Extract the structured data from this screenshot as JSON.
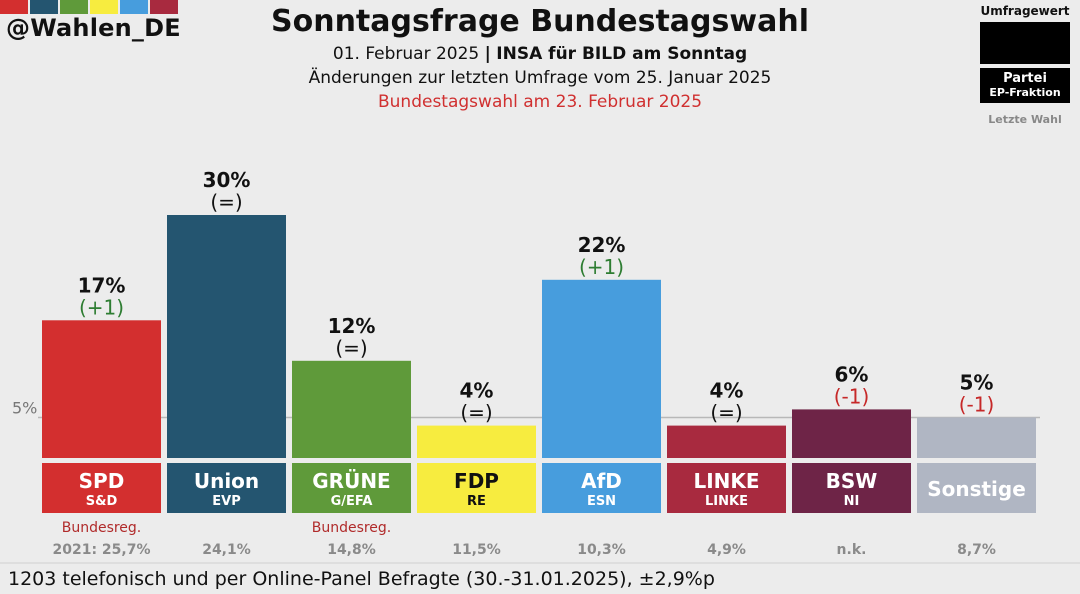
{
  "handle": "@Wahlen_DE",
  "brand_colors": [
    "#d32f2f",
    "#245570",
    "#5f9a3a",
    "#f7ec3f",
    "#479ddd",
    "#a82a3f",
    "#6e2447",
    "#b0b6c3"
  ],
  "header": {
    "title": "Sonntagsfrage Bundestagswahl",
    "date": "01. Februar 2025",
    "separator": "|",
    "institute": "INSA für BILD am Sonntag",
    "changes": "Änderungen zur letzten Umfrage vom 25. Januar 2025",
    "election": "Bundestagswahl am 23. Februar 2025"
  },
  "legend": {
    "value_label": "Umfragewert",
    "party_label": "Partei",
    "ep_label": "EP-Fraktion",
    "last_label": "Letzte Wahl"
  },
  "chart_data": {
    "type": "bar",
    "ylim": [
      0,
      30
    ],
    "threshold": {
      "value": 5,
      "label": "5%"
    },
    "categories": [
      "SPD",
      "Union",
      "GRÜNE",
      "FDP",
      "AfD",
      "LINKE",
      "BSW",
      "Sonstige"
    ],
    "values": [
      17,
      30,
      12,
      4,
      22,
      4,
      6,
      5
    ],
    "value_labels": [
      "17%",
      "30%",
      "12%",
      "4%",
      "22%",
      "4%",
      "6%",
      "5%"
    ],
    "changes": [
      "(+1)",
      "(=)",
      "(=)",
      "(=)",
      "(+1)",
      "(=)",
      "(-1)",
      "(-1)"
    ],
    "change_directions": [
      "up",
      "same",
      "same",
      "same",
      "up",
      "same",
      "down",
      "down"
    ],
    "ep_groups": [
      "S&D",
      "EVP",
      "G/EFA",
      "RE",
      "ESN",
      "LINKE",
      "NI",
      ""
    ],
    "gov_notes": [
      "Bundesreg.",
      "",
      "Bundesreg.",
      "",
      "",
      "",
      "",
      ""
    ],
    "last_election": [
      "2021: 25,7%",
      "24,1%",
      "14,8%",
      "11,5%",
      "10,3%",
      "4,9%",
      "n.k.",
      "8,7%"
    ],
    "colors": [
      "#d32f2f",
      "#245570",
      "#5f9a3a",
      "#f7ec3f",
      "#479ddd",
      "#a82a3f",
      "#6e2447",
      "#b0b6c3"
    ],
    "label_text_colors": [
      "#ffffff",
      "#ffffff",
      "#ffffff",
      "#111111",
      "#ffffff",
      "#ffffff",
      "#ffffff",
      "#ffffff"
    ],
    "change_colors": {
      "up": "#2e7d32",
      "same": "#111111",
      "down": "#c62828"
    }
  },
  "footer": "1203 telefonisch und per Online-Panel Befragte (30.-31.01.2025), ±2,9%p"
}
